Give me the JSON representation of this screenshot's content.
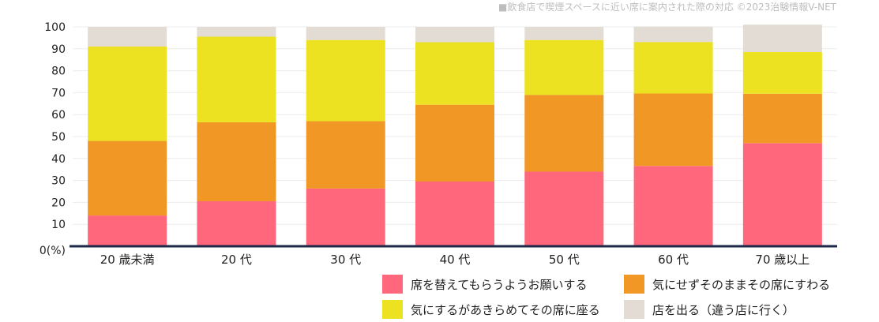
{
  "chart_data": {
    "type": "bar",
    "stacked": true,
    "title": "■飲食店で喫煙スペースに近い席に案内された際の対応 ©2023治験情報V-NET",
    "categories": [
      "20 歳未満",
      "20 代",
      "30 代",
      "40 代",
      "50 代",
      "60 代",
      "70 歳以上"
    ],
    "yticks": [
      "0(%)",
      "10",
      "20",
      "30",
      "40",
      "50",
      "60",
      "70",
      "80",
      "90",
      "100"
    ],
    "ylim": [
      0,
      100
    ],
    "grid": true,
    "legend_position": "bottom-right",
    "series": [
      {
        "name": "席を替えてもらうようお願いする",
        "color": "#ff677d",
        "values": [
          14,
          20.5,
          26.3,
          29.5,
          34,
          36.6,
          47
        ]
      },
      {
        "name": "気にせずそのままその席にすわる",
        "color": "#f09725",
        "values": [
          34,
          36,
          30.7,
          35,
          35,
          33,
          22.5
        ]
      },
      {
        "name": "気にするがあきらめてその席に座る",
        "color": "#ece222",
        "values": [
          43,
          39,
          37,
          28.5,
          25,
          23.5,
          19
        ]
      },
      {
        "name": "店を出る（違う店に行く）",
        "color": "#e2dcd4",
        "values": [
          9,
          4.5,
          6,
          7,
          6,
          7,
          12.5
        ]
      }
    ]
  }
}
